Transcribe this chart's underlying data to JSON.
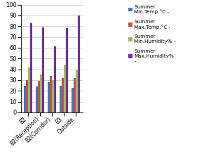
{
  "categories": [
    "B2",
    "B2(Reception)",
    "B2(Corridor)",
    "B3",
    "Outside"
  ],
  "series": [
    {
      "label": "Summer\nMin.Temp.°C -",
      "color": "#4472C4",
      "values": [
        25,
        24,
        28,
        25,
        23
      ]
    },
    {
      "label": "Summer\nMax.Temp.°C -",
      "color": "#C0504D",
      "values": [
        30,
        29,
        34,
        32,
        32
      ]
    },
    {
      "label": "Summer\nMin.Humidity% -",
      "color": "#9BBB59",
      "values": [
        42,
        35,
        30,
        44,
        40
      ]
    },
    {
      "label": "Summer\nMax.Humidity%\n-",
      "color": "#7030A0",
      "values": [
        83,
        79,
        61,
        78,
        90
      ]
    }
  ],
  "ylim": [
    0,
    100
  ],
  "yticks": [
    0,
    10,
    20,
    30,
    40,
    50,
    60,
    70,
    80,
    90,
    100
  ],
  "background_color": "#ffffff",
  "grid_color": "#d0d0d0",
  "fig_width": 3.01,
  "fig_height": 2.22,
  "dpi": 100
}
